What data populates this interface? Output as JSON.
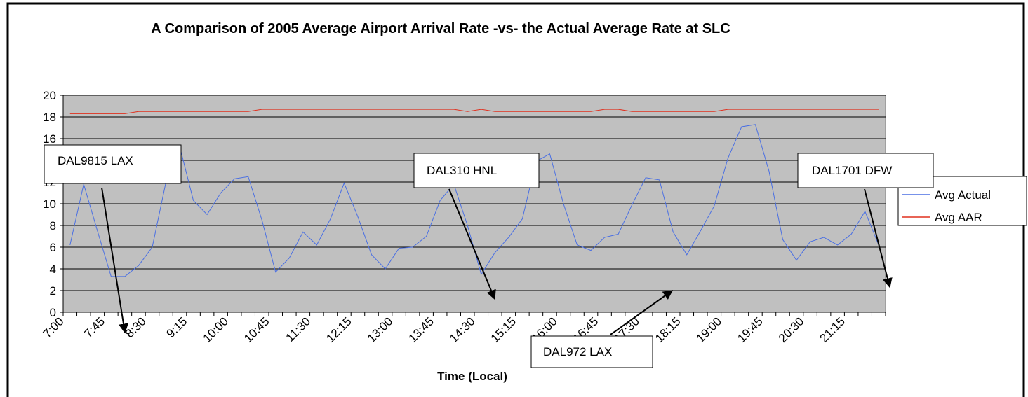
{
  "chart_data": {
    "type": "line",
    "title": "A Comparison of 2005 Average Airport Arrival Rate -vs- the Actual Average Rate at SLC",
    "x_label": "Time (Local)",
    "categories": [
      "7:00",
      null,
      null,
      "7:45",
      null,
      null,
      "8:30",
      null,
      null,
      "9:15",
      null,
      null,
      "10:00",
      null,
      null,
      "10:45",
      null,
      null,
      "11:30",
      null,
      null,
      "12:15",
      null,
      null,
      "13:00",
      null,
      null,
      "13:45",
      null,
      null,
      "14:30",
      null,
      null,
      "15:15",
      null,
      null,
      "16:00",
      null,
      null,
      "16:45",
      null,
      null,
      "17:30",
      null,
      null,
      "18:15",
      null,
      null,
      "19:00",
      null,
      null,
      "19:45",
      null,
      null,
      "20:30",
      null,
      null,
      "21:15",
      null,
      null
    ],
    "series": [
      {
        "name": "Avg Actual",
        "color": "#4a6fe3",
        "values": [
          6.2,
          11.8,
          7.5,
          3.3,
          3.3,
          4.3,
          6.0,
          12.0,
          15.3,
          10.3,
          9.0,
          11.0,
          12.3,
          12.5,
          8.5,
          3.7,
          5.0,
          7.4,
          6.2,
          8.6,
          11.9,
          8.8,
          5.3,
          4.0,
          5.9,
          6.0,
          7.0,
          10.3,
          11.8,
          8.0,
          3.5,
          5.5,
          6.9,
          8.6,
          13.9,
          14.6,
          10.0,
          6.2,
          5.7,
          6.9,
          7.2,
          9.9,
          12.4,
          12.2,
          7.4,
          5.3,
          7.5,
          9.8,
          14.2,
          17.1,
          17.3,
          13.0,
          6.7,
          4.8,
          6.5,
          6.9,
          6.2,
          7.2,
          9.3,
          6.2
        ]
      },
      {
        "name": "Avg AAR",
        "color": "#e0301e",
        "values": [
          18.3,
          18.3,
          18.3,
          18.3,
          18.3,
          18.5,
          18.5,
          18.5,
          18.5,
          18.5,
          18.5,
          18.5,
          18.5,
          18.5,
          18.7,
          18.7,
          18.7,
          18.7,
          18.7,
          18.7,
          18.7,
          18.7,
          18.7,
          18.7,
          18.7,
          18.7,
          18.7,
          18.7,
          18.7,
          18.5,
          18.7,
          18.5,
          18.5,
          18.5,
          18.5,
          18.5,
          18.5,
          18.5,
          18.5,
          18.7,
          18.7,
          18.5,
          18.5,
          18.5,
          18.5,
          18.5,
          18.5,
          18.5,
          18.7,
          18.7,
          18.7,
          18.7,
          18.7,
          18.7,
          18.7,
          18.7,
          18.7,
          18.7,
          18.7,
          18.7
        ]
      }
    ],
    "ylim": [
      0,
      20
    ],
    "yticks": [
      0,
      2,
      4,
      6,
      8,
      10,
      12,
      14,
      16,
      18,
      20
    ],
    "grid": true,
    "legend": "right",
    "plot_background": "#c0c0c0",
    "annotations": [
      {
        "text": "DAL9815  LAX"
      },
      {
        "text": "DAL310 HNL"
      },
      {
        "text": "DAL1701 DFW"
      },
      {
        "text": "DAL972 LAX"
      }
    ]
  }
}
